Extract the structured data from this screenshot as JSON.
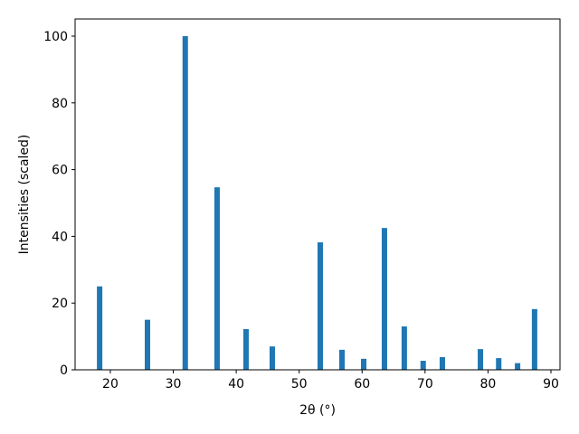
{
  "chart_data": {
    "type": "bar",
    "x_label": "2θ (°)",
    "y_label": "Intensities (scaled)",
    "x": [
      18.3,
      25.9,
      31.9,
      36.96,
      41.56,
      45.73,
      53.35,
      56.8,
      60.25,
      63.55,
      66.7,
      69.7,
      72.75,
      78.8,
      81.7,
      84.7,
      87.4
    ],
    "values": [
      25,
      15,
      100,
      54.7,
      12.2,
      7,
      38.2,
      6,
      3.3,
      42.5,
      13,
      2.7,
      3.8,
      6.2,
      3.5,
      2,
      18.2
    ],
    "color": "#1f77b4",
    "xlim": [
      14.4,
      91.44
    ],
    "ylim": [
      0,
      105.15
    ],
    "xticks": [
      20,
      30,
      40,
      50,
      60,
      70,
      80,
      90
    ],
    "yticks": [
      0,
      20,
      40,
      60,
      80,
      100
    ],
    "grid": false
  }
}
